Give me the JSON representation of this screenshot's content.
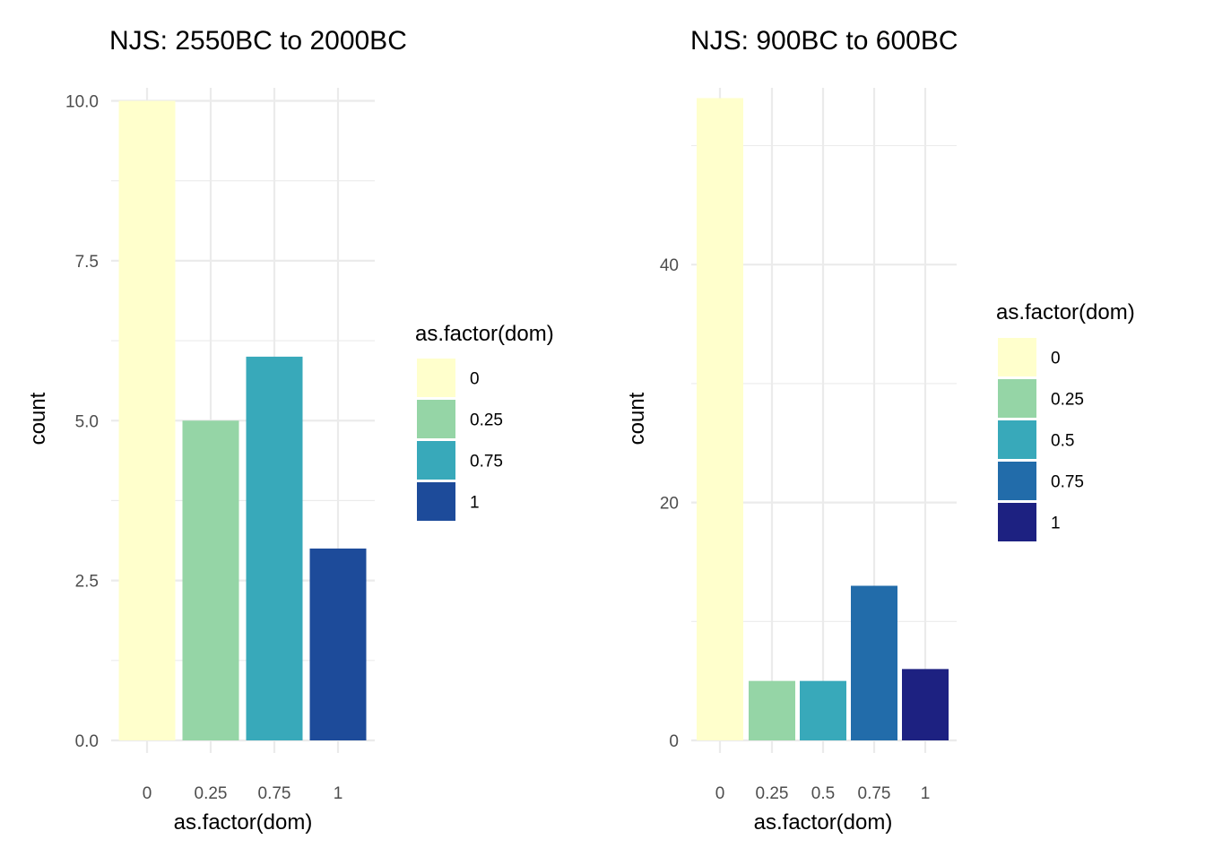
{
  "chart_data": [
    {
      "type": "bar",
      "title": "NJS: 2550BC to 2000BC",
      "xlabel": "as.factor(dom)",
      "ylabel": "count",
      "categories": [
        "0",
        "0.25",
        "0.75",
        "1"
      ],
      "values": [
        10,
        5,
        6,
        3
      ],
      "colors": [
        "#FFFFCC",
        "#95D5A6",
        "#38A9BA",
        "#1D4B9A"
      ],
      "ylim": [
        0,
        10
      ],
      "yticks": [
        0,
        2.5,
        5,
        7.5,
        10
      ],
      "ytick_labels": [
        "0.0",
        "2.5",
        "5.0",
        "7.5",
        "10.0"
      ],
      "grid": true,
      "legend": {
        "title": "as.factor(dom)",
        "placement": "right",
        "labels": [
          "0",
          "0.25",
          "0.75",
          "1"
        ]
      }
    },
    {
      "type": "bar",
      "title": "NJS: 900BC to 600BC",
      "xlabel": "as.factor(dom)",
      "ylabel": "count",
      "categories": [
        "0",
        "0.25",
        "0.5",
        "0.75",
        "1"
      ],
      "values": [
        54,
        5,
        5,
        13,
        6
      ],
      "colors": [
        "#FFFFCC",
        "#95D5A6",
        "#38A9BA",
        "#226CAA",
        "#1D2181"
      ],
      "ylim": [
        0,
        54
      ],
      "yticks": [
        0,
        20,
        40
      ],
      "ytick_labels": [
        "0",
        "20",
        "40"
      ],
      "grid": true,
      "legend": {
        "title": "as.factor(dom)",
        "placement": "right",
        "labels": [
          "0",
          "0.25",
          "0.5",
          "0.75",
          "1"
        ]
      }
    }
  ]
}
